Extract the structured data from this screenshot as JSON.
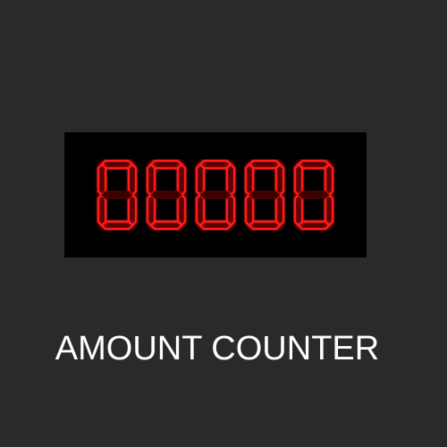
{
  "counter": {
    "value": "00000",
    "caption": "AMOUNT COUNTER",
    "lit_color": "#ff1a1a",
    "unlit_color": "#3a0000"
  }
}
